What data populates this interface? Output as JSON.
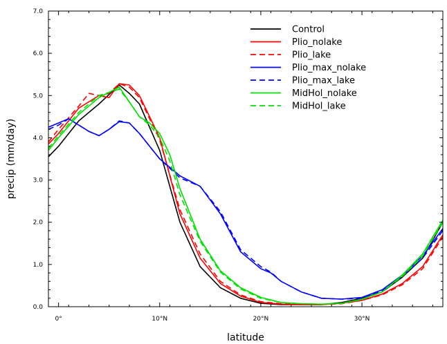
{
  "chart_data": {
    "type": "line",
    "xlabel": "latitude",
    "ylabel": "precip (mm/day)",
    "xlim": [
      -1,
      38
    ],
    "ylim": [
      0,
      7
    ],
    "x_ticks": [
      {
        "value": 0,
        "label": "0°"
      },
      {
        "value": 10,
        "label": "10°N"
      },
      {
        "value": 20,
        "label": "20°N"
      },
      {
        "value": 30,
        "label": "30°N"
      }
    ],
    "y_ticks": [
      {
        "value": 0,
        "label": "0.0"
      },
      {
        "value": 1,
        "label": "1.0"
      },
      {
        "value": 2,
        "label": "2.0"
      },
      {
        "value": 3,
        "label": "3.0"
      },
      {
        "value": 4,
        "label": "4.0"
      },
      {
        "value": 5,
        "label": "5.0"
      },
      {
        "value": 6,
        "label": "6.0"
      },
      {
        "value": 7,
        "label": "7.0"
      }
    ],
    "grid": false,
    "legend_position": "top-right",
    "series": [
      {
        "name": "Control",
        "color": "#000000",
        "dash": "solid",
        "x": [
          -1,
          0,
          2,
          4,
          6,
          7,
          8,
          10,
          12,
          14,
          16,
          18,
          20,
          22,
          24,
          26,
          28,
          30,
          32,
          34,
          36,
          38
        ],
        "y": [
          3.55,
          3.8,
          4.4,
          4.8,
          5.25,
          5.05,
          4.8,
          3.7,
          2.0,
          0.95,
          0.45,
          0.2,
          0.08,
          0.05,
          0.05,
          0.05,
          0.1,
          0.2,
          0.35,
          0.7,
          1.15,
          2.0
        ]
      },
      {
        "name": "Plio_nolake",
        "color": "#ff0000",
        "dash": "solid",
        "x": [
          -1,
          0,
          2,
          4,
          5,
          6,
          7,
          8,
          10,
          12,
          14,
          16,
          18,
          20,
          22,
          24,
          26,
          28,
          30,
          32,
          34,
          36,
          38
        ],
        "y": [
          3.85,
          4.1,
          4.7,
          5.0,
          4.95,
          5.28,
          5.25,
          5.0,
          4.0,
          2.2,
          1.15,
          0.55,
          0.25,
          0.1,
          0.06,
          0.05,
          0.05,
          0.08,
          0.15,
          0.3,
          0.55,
          0.95,
          1.7
        ]
      },
      {
        "name": "Plio_lake",
        "color": "#ff0000",
        "dash": "dashed",
        "x": [
          -1,
          0,
          2,
          3,
          4,
          5,
          6,
          7,
          8,
          10,
          12,
          14,
          16,
          18,
          20,
          22,
          24,
          26,
          28,
          30,
          32,
          34,
          36,
          38
        ],
        "y": [
          3.9,
          4.2,
          4.75,
          5.05,
          5.0,
          5.05,
          5.28,
          5.2,
          4.95,
          3.95,
          2.3,
          1.25,
          0.6,
          0.28,
          0.12,
          0.07,
          0.05,
          0.05,
          0.07,
          0.15,
          0.28,
          0.52,
          0.9,
          1.65
        ]
      },
      {
        "name": "Plio_max_nolake",
        "color": "#0000ff",
        "dash": "solid",
        "x": [
          -1,
          0,
          1,
          2,
          3,
          4,
          5,
          6,
          7,
          8,
          10,
          12,
          14,
          16,
          18,
          20,
          21,
          22,
          24,
          26,
          28,
          30,
          32,
          34,
          36,
          38
        ],
        "y": [
          4.25,
          4.35,
          4.45,
          4.3,
          4.15,
          4.05,
          4.2,
          4.38,
          4.35,
          4.1,
          3.5,
          3.1,
          2.85,
          2.2,
          1.3,
          0.9,
          0.8,
          0.6,
          0.35,
          0.2,
          0.18,
          0.22,
          0.4,
          0.75,
          1.2,
          1.85
        ]
      },
      {
        "name": "Plio_max_lake",
        "color": "#0000ff",
        "dash": "dashed",
        "x": [
          -1,
          0,
          1,
          2,
          3,
          4,
          5,
          6,
          7,
          8,
          10,
          12,
          14,
          16,
          18,
          20,
          21,
          22,
          24,
          26,
          28,
          30,
          32,
          34,
          36,
          38
        ],
        "y": [
          4.2,
          4.3,
          4.45,
          4.3,
          4.15,
          4.05,
          4.2,
          4.4,
          4.35,
          4.1,
          3.5,
          3.05,
          2.85,
          2.25,
          1.35,
          0.95,
          0.82,
          0.6,
          0.35,
          0.2,
          0.18,
          0.2,
          0.38,
          0.72,
          1.15,
          1.8
        ]
      },
      {
        "name": "MidHol_nolake",
        "color": "#00e000",
        "dash": "solid",
        "x": [
          -1,
          0,
          2,
          4,
          6,
          7,
          8,
          9,
          10,
          11,
          12,
          14,
          16,
          18,
          20,
          22,
          24,
          26,
          28,
          30,
          32,
          34,
          36,
          38
        ],
        "y": [
          3.7,
          4.0,
          4.55,
          4.95,
          5.2,
          4.85,
          4.5,
          4.35,
          4.1,
          3.6,
          2.8,
          1.6,
          0.85,
          0.45,
          0.22,
          0.1,
          0.07,
          0.06,
          0.08,
          0.18,
          0.35,
          0.75,
          1.25,
          2.05
        ]
      },
      {
        "name": "MidHol_lake",
        "color": "#00e000",
        "dash": "dashed",
        "x": [
          -1,
          0,
          2,
          4,
          6,
          7,
          8,
          9,
          10,
          11,
          12,
          14,
          16,
          18,
          20,
          22,
          24,
          26,
          28,
          30,
          32,
          34,
          36,
          38
        ],
        "y": [
          3.75,
          4.05,
          4.6,
          5.0,
          5.15,
          4.85,
          4.5,
          4.3,
          4.0,
          3.45,
          2.65,
          1.55,
          0.82,
          0.42,
          0.2,
          0.1,
          0.07,
          0.06,
          0.08,
          0.17,
          0.35,
          0.72,
          1.2,
          2.0
        ]
      }
    ]
  }
}
